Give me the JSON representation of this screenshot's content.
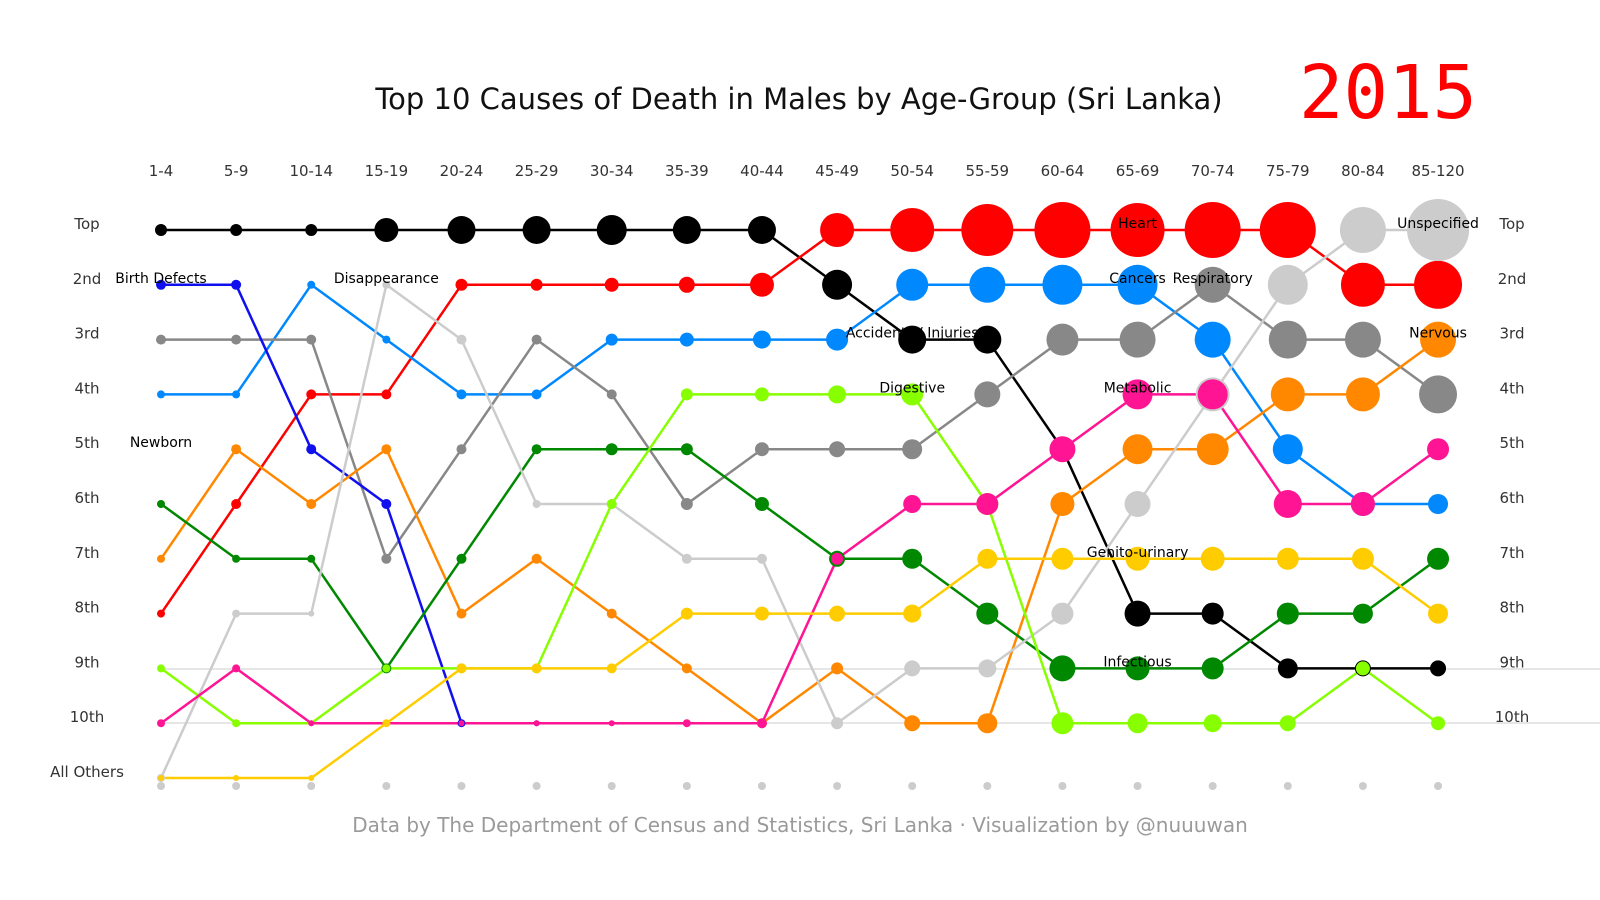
{
  "title": "Top 10 Causes of Death in Males by Age-Group (Sri Lanka)",
  "year": "2015",
  "source": "Data by The Department of Census and Statistics, Sri Lanka · Visualization by @nuuuwan",
  "chart_data": {
    "type": "line",
    "x": [
      "1-4",
      "5-9",
      "10-14",
      "15-19",
      "20-24",
      "25-29",
      "30-34",
      "35-39",
      "40-44",
      "45-49",
      "50-54",
      "55-59",
      "60-64",
      "65-69",
      "70-74",
      "75-79",
      "80-84",
      "85-120"
    ],
    "ranks": [
      "Top",
      "2nd",
      "3rd",
      "4th",
      "5th",
      "6th",
      "7th",
      "8th",
      "9th",
      "10th",
      "All Others"
    ],
    "ylim": [
      1,
      11
    ],
    "series": [
      {
        "color": "#000000",
        "ranks": [
          1,
          1,
          1,
          1,
          1,
          1,
          1,
          1,
          1,
          2,
          3,
          3,
          5,
          8,
          8,
          9,
          9,
          9
        ],
        "sizes": [
          6,
          6,
          6,
          12,
          14,
          14,
          15,
          14,
          14,
          15,
          14,
          14,
          12,
          13,
          11,
          10,
          8,
          8
        ]
      },
      {
        "color": "#ff0000",
        "ranks": [
          8,
          6,
          4,
          4,
          2,
          2,
          2,
          2,
          2,
          1,
          1,
          1,
          1,
          1,
          1,
          1,
          2,
          2
        ],
        "sizes": [
          4,
          5,
          5,
          5,
          6,
          6,
          7,
          8,
          12,
          17,
          22,
          26,
          28,
          27,
          28,
          28,
          22,
          24
        ]
      },
      {
        "color": "#0088ff",
        "ranks": [
          4,
          4,
          2,
          3,
          4,
          4,
          3,
          3,
          3,
          3,
          2,
          2,
          2,
          2,
          3,
          5,
          6,
          6
        ],
        "sizes": [
          4,
          4,
          4,
          4,
          5,
          5,
          6,
          7,
          9,
          11,
          16,
          18,
          20,
          20,
          18,
          15,
          12,
          10
        ]
      },
      {
        "color": "#888888",
        "ranks": [
          3,
          3,
          3,
          7,
          5,
          3,
          4,
          6,
          5,
          5,
          5,
          4,
          3,
          3,
          2,
          3,
          3,
          4
        ],
        "sizes": [
          5,
          5,
          5,
          5,
          5,
          5,
          5,
          6,
          7,
          8,
          10,
          13,
          16,
          18,
          18,
          19,
          18,
          19
        ]
      },
      {
        "color": "#1010ee",
        "ranks": [
          2,
          2,
          5,
          6,
          10,
          10
        ],
        "sizes": [
          5,
          5,
          5,
          5,
          4,
          3
        ]
      },
      {
        "color": "#ff8800",
        "ranks": [
          7,
          5,
          6,
          5,
          8,
          7,
          8,
          9,
          10,
          9,
          10,
          10,
          6,
          5,
          5,
          4,
          4,
          3
        ],
        "sizes": [
          4,
          5,
          5,
          5,
          5,
          5,
          5,
          5,
          5,
          6,
          8,
          10,
          12,
          15,
          16,
          17,
          17,
          18
        ]
      },
      {
        "color": "#008800",
        "ranks": [
          6,
          7,
          7,
          9,
          7,
          5,
          5,
          5,
          6,
          7,
          7,
          8,
          9,
          9,
          9,
          8,
          8,
          7
        ],
        "sizes": [
          4,
          4,
          4,
          5,
          5,
          5,
          6,
          6,
          7,
          8,
          10,
          11,
          13,
          12,
          11,
          11,
          10,
          11
        ]
      },
      {
        "color": "#cccccc",
        "ranks": [
          11,
          8,
          8,
          2,
          3,
          6,
          6,
          7,
          7,
          10,
          9,
          9,
          8,
          6,
          4,
          2,
          1,
          1
        ],
        "sizes": [
          4,
          4,
          3,
          4,
          5,
          4,
          5,
          5,
          5,
          6,
          8,
          9,
          11,
          13,
          17,
          20,
          23,
          31
        ]
      },
      {
        "color": "#88ff00",
        "ranks": [
          9,
          10,
          10,
          9,
          9,
          9,
          6,
          4,
          4,
          4,
          4,
          6,
          10,
          10,
          10,
          10,
          9,
          10
        ],
        "sizes": [
          4,
          4,
          3,
          4,
          5,
          5,
          5,
          6,
          7,
          9,
          11,
          11,
          11,
          10,
          9,
          8,
          7,
          7
        ]
      },
      {
        "color": "#ff1493",
        "ranks": [
          10,
          9,
          10,
          10,
          10,
          10,
          10,
          10,
          10,
          7,
          6,
          6,
          5,
          4,
          4,
          6,
          6,
          5
        ],
        "sizes": [
          4,
          4,
          3,
          3,
          3,
          3,
          3,
          4,
          5,
          6,
          9,
          11,
          13,
          15,
          15,
          14,
          12,
          11
        ]
      },
      {
        "color": "#ffcc00",
        "ranks": [
          11,
          11,
          11,
          10,
          9,
          9,
          9,
          8,
          8,
          8,
          8,
          7,
          7,
          7,
          7,
          7,
          7,
          8
        ],
        "sizes": [
          3,
          3,
          3,
          4,
          5,
          5,
          5,
          6,
          7,
          8,
          9,
          10,
          11,
          12,
          12,
          11,
          11,
          10
        ]
      }
    ],
    "others": {
      "color": "#cccccc"
    },
    "labels": [
      {
        "text": "Birth Defects",
        "age": 0,
        "rank": 2
      },
      {
        "text": "Disappearance",
        "age": 3,
        "rank": 2
      },
      {
        "text": "Newborn",
        "age": 0,
        "rank": 5
      },
      {
        "text": "Accidents / Injuries",
        "age": 10,
        "rank": 3
      },
      {
        "text": "Digestive",
        "age": 10,
        "rank": 4
      },
      {
        "text": "Heart",
        "age": 13,
        "rank": 1
      },
      {
        "text": "Cancers",
        "age": 13,
        "rank": 2
      },
      {
        "text": "Respiratory",
        "age": 14,
        "rank": 2
      },
      {
        "text": "Metabolic",
        "age": 13,
        "rank": 4
      },
      {
        "text": "Genito-urinary",
        "age": 13,
        "rank": 7
      },
      {
        "text": "Infectious",
        "age": 13,
        "rank": 9
      },
      {
        "text": "Unspecified",
        "age": 17,
        "rank": 1
      },
      {
        "text": "Nervous",
        "age": 17,
        "rank": 3
      }
    ]
  }
}
